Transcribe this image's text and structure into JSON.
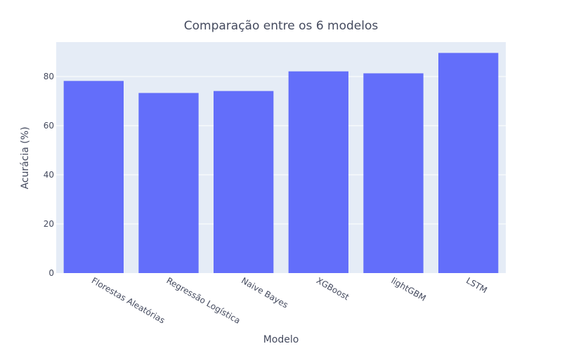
{
  "chart_data": {
    "type": "bar",
    "title": "Comparação entre os 6 modelos",
    "xlabel": "Modelo",
    "ylabel": "Acurácia (%)",
    "categories": [
      "Florestas Aleatórias",
      "Regressão Logística",
      "Naive Bayes",
      "XGBoost",
      "lightGBM",
      "LSTM"
    ],
    "values": [
      78.2,
      73.3,
      74.1,
      82.1,
      81.3,
      89.6
    ],
    "ylim": [
      0,
      94
    ],
    "yticks": [
      0,
      20,
      40,
      60,
      80
    ],
    "grid": true,
    "legend": "none",
    "colors": {
      "bar": "#636efa",
      "plot_background": "#e5ecf6",
      "gridline": "#ffffff",
      "text": "#444a5e"
    }
  }
}
